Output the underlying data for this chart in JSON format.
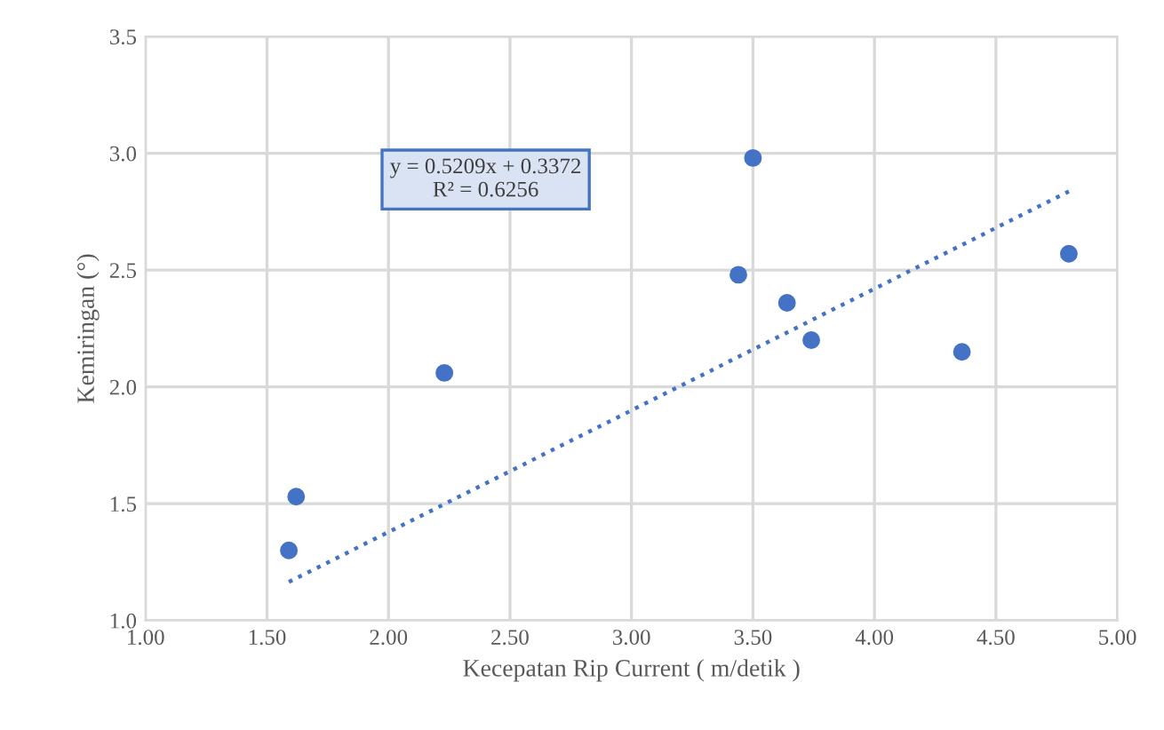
{
  "chart_data": {
    "type": "scatter",
    "xlabel": "Kecepatan Rip Current ( m/detik )",
    "ylabel": "Kemiringan (°)",
    "xlim": [
      1.0,
      5.0
    ],
    "xticks": [
      {
        "value": 1.0,
        "label": "1.00"
      },
      {
        "value": 1.5,
        "label": "1.50"
      },
      {
        "value": 2.0,
        "label": "2.00"
      },
      {
        "value": 2.5,
        "label": "2.50"
      },
      {
        "value": 3.0,
        "label": "3.00"
      },
      {
        "value": 3.5,
        "label": "3.50"
      },
      {
        "value": 4.0,
        "label": "4.00"
      },
      {
        "value": 4.5,
        "label": "4.50"
      },
      {
        "value": 5.0,
        "label": "5.00"
      }
    ],
    "ylim": [
      1.0,
      3.5
    ],
    "yticks": [
      {
        "value": 1.0,
        "label": "1.0"
      },
      {
        "value": 1.5,
        "label": "1.5"
      },
      {
        "value": 2.0,
        "label": "2.0"
      },
      {
        "value": 2.5,
        "label": "2.5"
      },
      {
        "value": 3.0,
        "label": "3.0"
      },
      {
        "value": 3.5,
        "label": "3.5"
      }
    ],
    "grid": true,
    "marker": "circle",
    "series": [
      {
        "color": "#4472c4",
        "x": [
          1.59,
          1.62,
          2.23,
          3.44,
          3.5,
          3.64,
          3.74,
          4.36,
          4.8
        ],
        "values": [
          1.3,
          1.53,
          2.06,
          2.48,
          2.98,
          2.36,
          2.2,
          2.15,
          2.57
        ]
      },
      {
        "type": "line",
        "color": "#4472c4",
        "line_style": "dotted",
        "marker": "none",
        "x": [
          1.59,
          4.8
        ],
        "values": [
          1.165,
          2.837
        ]
      }
    ],
    "annotations": [
      "y = 0.5209x + 0.3372\nR² = 0.6256"
    ]
  }
}
